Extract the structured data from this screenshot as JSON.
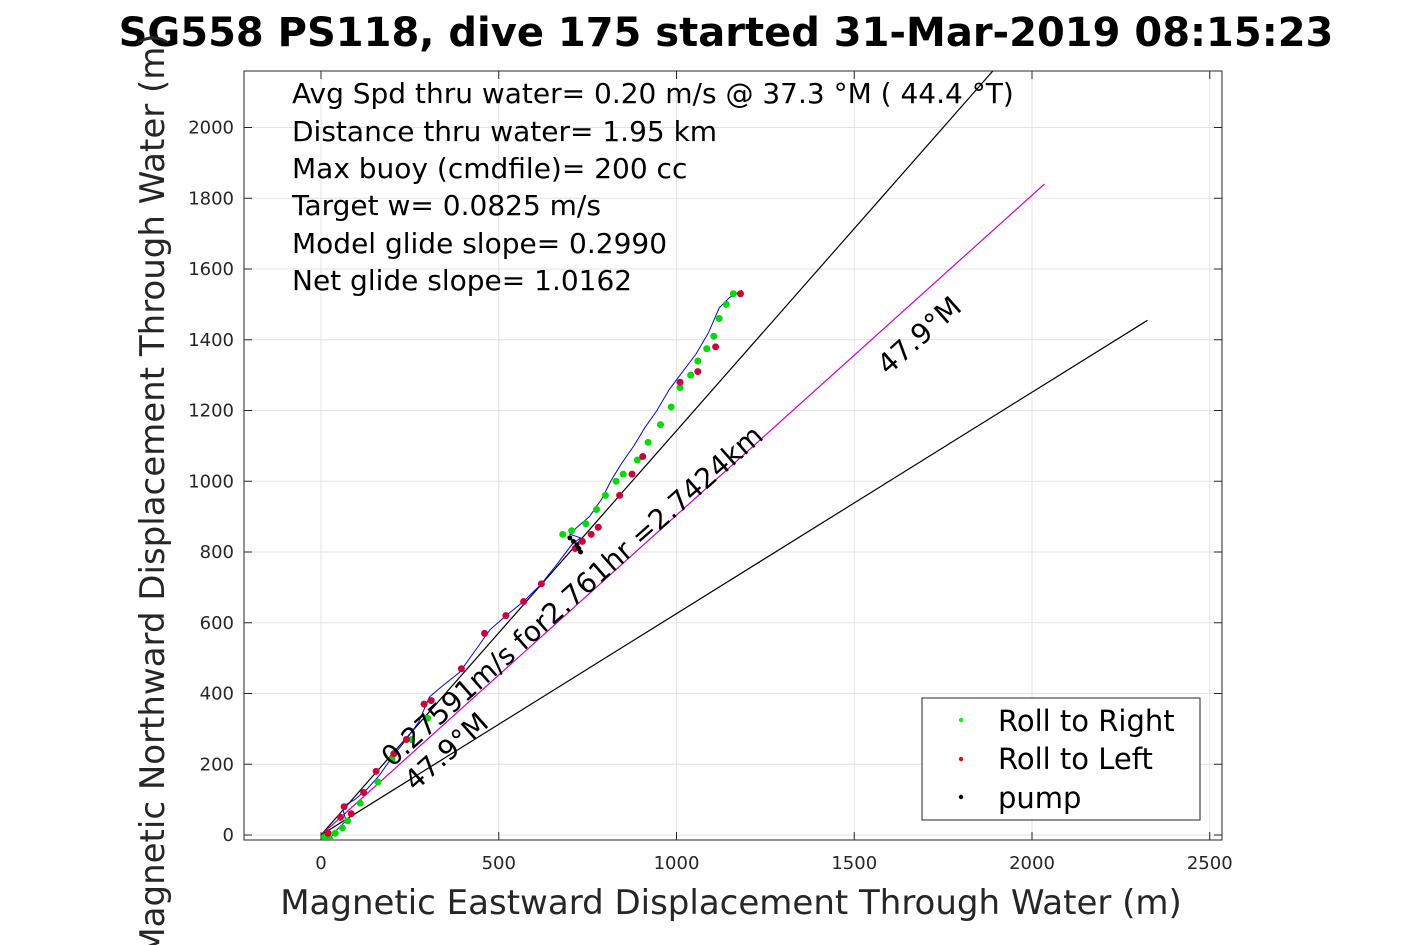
{
  "chart_data": {
    "type": "line",
    "title": "SG558 PS118, dive 175 started 31-Mar-2019 08:15:23",
    "xlabel": "Magnetic Eastward Displacement Through Water (m)",
    "ylabel": "Magnetic Northward Displacement Through Water (m)",
    "xlim": [
      -220,
      2520
    ],
    "ylim": [
      -10,
      2160
    ],
    "xticks": [
      0,
      500,
      1000,
      1500,
      2000,
      2500
    ],
    "yticks": [
      0,
      200,
      400,
      600,
      800,
      1000,
      1200,
      1400,
      1600,
      1800,
      2000
    ],
    "grid": true,
    "info_lines": [
      "Avg Spd thru water=  0.20 m/s @  37.3 °M ( 44.4 °T)",
      "Distance thru water=  1.95 km",
      "Max buoy (cmdfile)= 200 cc",
      "Target w= 0.0825 m/s",
      "Model glide slope= 0.2990",
      "Net glide slope= 1.0162"
    ],
    "annotations": {
      "current": "0.27591m/s for2.761hr =2.7424km",
      "heading_1": "47.9°M",
      "heading_2": "47.9°M"
    },
    "reference_lines": [
      {
        "color": "#000000",
        "x": [
          0,
          1890
        ],
        "y": [
          0,
          2160
        ]
      },
      {
        "color": "#cc00cc",
        "x": [
          0,
          2035
        ],
        "y": [
          0,
          1840
        ]
      },
      {
        "color": "#000000",
        "x": [
          0,
          2325
        ],
        "y": [
          0,
          1455
        ]
      }
    ],
    "track": {
      "color": "#0000ff",
      "x": [
        10,
        25,
        45,
        70,
        60,
        95,
        130,
        165,
        200,
        240,
        275,
        305,
        340,
        390,
        440,
        475,
        520,
        570,
        620,
        660,
        705,
        730,
        700,
        720,
        755,
        790,
        815,
        845,
        880,
        910,
        945,
        980,
        1010,
        1055,
        1090,
        1120,
        1150,
        1185
      ],
      "y": [
        0,
        -10,
        15,
        40,
        80,
        100,
        130,
        170,
        220,
        270,
        320,
        390,
        420,
        460,
        530,
        580,
        620,
        660,
        710,
        760,
        820,
        840,
        850,
        870,
        900,
        950,
        1000,
        1050,
        1100,
        1150,
        1200,
        1260,
        1300,
        1360,
        1420,
        1490,
        1520,
        1540
      ]
    },
    "legend": {
      "placement": "bottom-right",
      "entries": [
        {
          "label": "Roll to Right",
          "color": "#00ff00"
        },
        {
          "label": "Roll to Left",
          "color": "#ff0000"
        },
        {
          "label": "pump",
          "color": "#000000"
        }
      ]
    },
    "roll_right": {
      "x": [
        10,
        25,
        40,
        60,
        75,
        110,
        160,
        200,
        255,
        300,
        680,
        705,
        745,
        775,
        800,
        830,
        850,
        890,
        920,
        955,
        985,
        1010,
        1040,
        1060,
        1085,
        1105,
        1120,
        1140,
        1160
      ],
      "y": [
        -5,
        -12,
        5,
        20,
        40,
        90,
        150,
        215,
        270,
        330,
        850,
        860,
        880,
        920,
        960,
        1000,
        1020,
        1060,
        1110,
        1160,
        1210,
        1265,
        1300,
        1340,
        1375,
        1410,
        1460,
        1500,
        1530
      ]
    },
    "roll_left": {
      "x": [
        20,
        55,
        65,
        85,
        120,
        155,
        205,
        240,
        290,
        310,
        395,
        460,
        520,
        570,
        620,
        715,
        735,
        760,
        780,
        840,
        875,
        905,
        1010,
        1060,
        1110,
        1180
      ],
      "y": [
        5,
        50,
        80,
        60,
        120,
        180,
        230,
        270,
        370,
        380,
        470,
        570,
        620,
        660,
        710,
        810,
        830,
        850,
        870,
        960,
        1020,
        1070,
        1280,
        1310,
        1380,
        1530
      ]
    },
    "pump": {
      "x": [
        700,
        710,
        720,
        725,
        730
      ],
      "y": [
        840,
        830,
        820,
        810,
        800
      ]
    }
  }
}
